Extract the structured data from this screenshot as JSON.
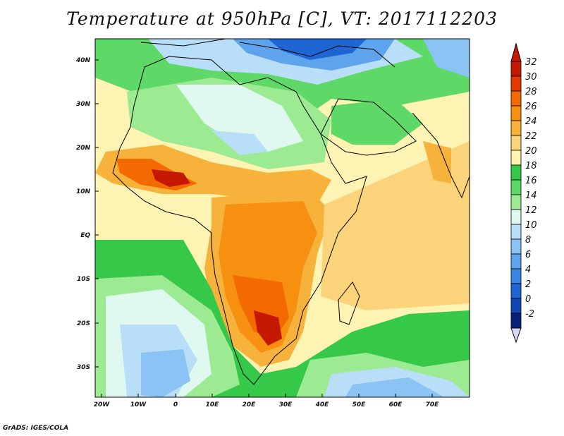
{
  "title": "Temperature at 950hPa [C], VT: 2017112203",
  "credit": "GrADS: IGES/COLA",
  "map": {
    "lat_ticks": [
      "40N",
      "30N",
      "20N",
      "10N",
      "EQ",
      "10S",
      "20S",
      "30S"
    ],
    "lon_ticks": [
      "20W",
      "10W",
      "0",
      "10E",
      "20E",
      "30E",
      "40E",
      "50E",
      "60E",
      "70E"
    ]
  },
  "colorbar": {
    "levels": [
      "32",
      "30",
      "28",
      "26",
      "24",
      "22",
      "20",
      "18",
      "16",
      "14",
      "12",
      "10",
      "8",
      "6",
      "4",
      "2",
      "0",
      "-2"
    ],
    "colors": [
      "#c41800",
      "#e63a00",
      "#f26a00",
      "#f78f10",
      "#f7b23c",
      "#fbd37a",
      "#fdf3b2",
      "#36c848",
      "#5ed866",
      "#9ceb93",
      "#dff8f0",
      "#b9def8",
      "#8ac3f4",
      "#5ea4ec",
      "#3a86e2",
      "#1f66d4",
      "#1146b7",
      "#08207a",
      "#d8d8f8"
    ],
    "top_arrow_color": "#c41800",
    "bottom_arrow_color": "#d8d8f8"
  }
}
